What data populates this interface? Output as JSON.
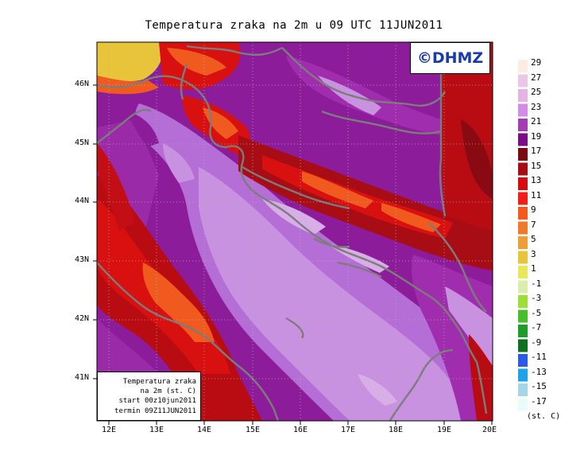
{
  "title": "Temperatura zraka na 2m u 09 UTC 11JUN2011",
  "copyright": "©DHMZ",
  "info_box": [
    "Temperatura zraka",
    "na 2m (st. C)",
    "start 00z10jun2011",
    "termin 09Z11JUN2011"
  ],
  "lat_labels": [
    "46N",
    "45N",
    "44N",
    "43N",
    "42N",
    "41N"
  ],
  "lon_labels": [
    "12E",
    "13E",
    "14E",
    "15E",
    "16E",
    "17E",
    "18E",
    "19E",
    "20E"
  ],
  "legend": {
    "labels": [
      "29",
      "27",
      "25",
      "23",
      "21",
      "19",
      "17",
      "15",
      "13",
      "11",
      "9",
      "7",
      "5",
      "3",
      "1",
      "-1",
      "-3",
      "-5",
      "-7",
      "-9",
      "-11",
      "-13",
      "-15",
      "-17"
    ],
    "colors": [
      "#fbeee0",
      "#e8c8e6",
      "#e4b4e6",
      "#d28ce6",
      "#a53cb4",
      "#7a0e86",
      "#7a0a12",
      "#a80c14",
      "#d80a10",
      "#f01e16",
      "#f45a1e",
      "#f07a28",
      "#ee9e34",
      "#e8c438",
      "#e8e858",
      "#dcecac",
      "#9ce034",
      "#46c02a",
      "#1e9e28",
      "#0e6e22",
      "#2c5ae8",
      "#1ea2e8",
      "#a4d6e8",
      "#e8fcfc"
    ],
    "units": "(st. C)"
  },
  "field_colors": {
    "sea_light": "#c892e0",
    "sea_mid": "#b46ed6",
    "land_purple": "#8c1c9a",
    "dark_red": "#8a0a14",
    "red": "#d01010",
    "orange": "#f05a1e",
    "yellow": "#e8c43a",
    "coast": "#7c7c7c"
  }
}
